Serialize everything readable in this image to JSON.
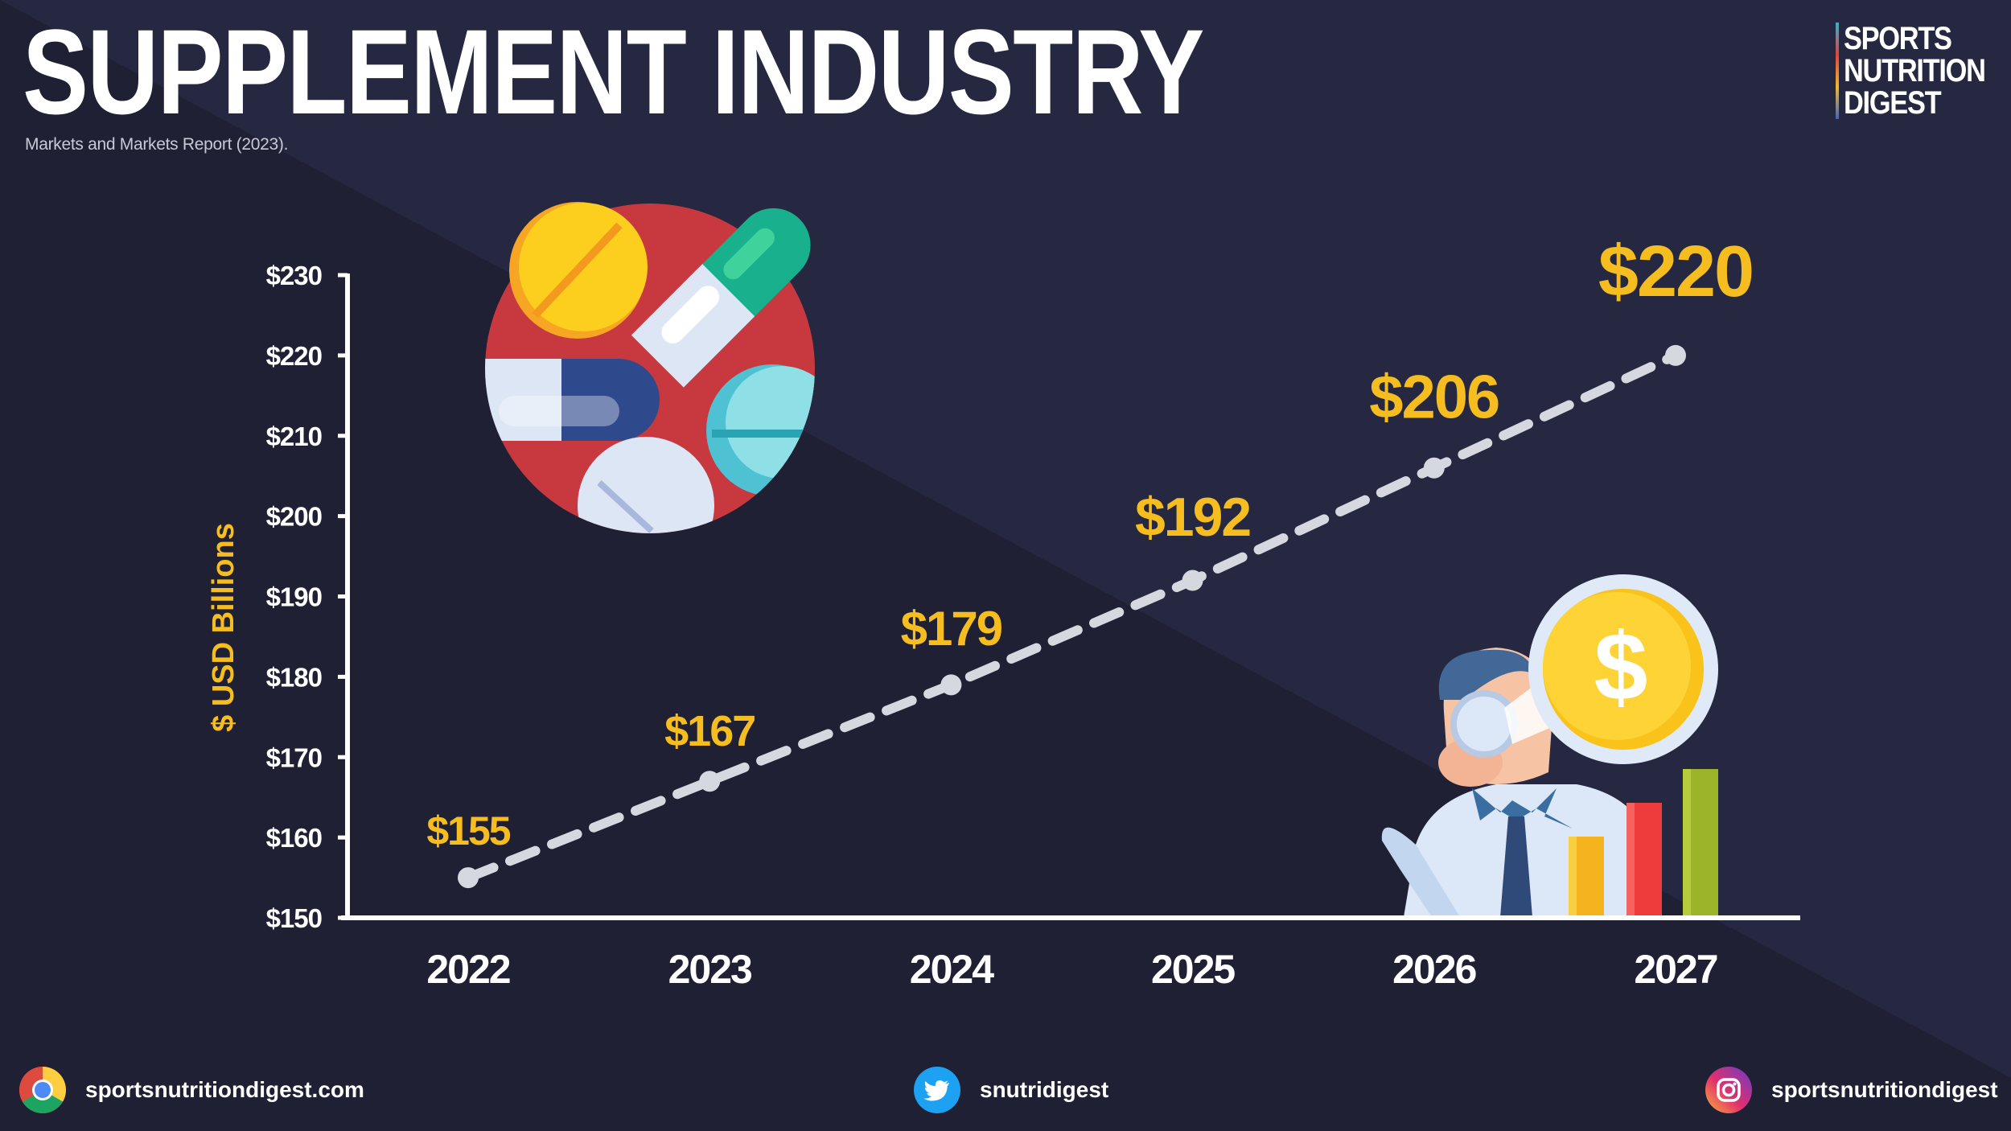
{
  "header": {
    "title": "SUPPLEMENT INDUSTRY",
    "source": "Markets and Markets Report (2023).",
    "brand_lines": [
      "SPORTS",
      "NUTRITION",
      "DIGEST"
    ]
  },
  "colors": {
    "background": "#1f2034",
    "value_label": "#f5bd1f",
    "line": "#d6d8df",
    "axis": "#ffffff"
  },
  "chart_data": {
    "type": "line",
    "title": "",
    "xlabel": "",
    "ylabel": "$ USD Billions",
    "x": [
      "2022",
      "2023",
      "2024",
      "2025",
      "2026",
      "2027"
    ],
    "series": [
      {
        "values": [
          155,
          167,
          179,
          192,
          206,
          220
        ],
        "labels": [
          "$155",
          "$167",
          "$179",
          "$192",
          "$206",
          "$220"
        ]
      }
    ],
    "ylim": [
      150,
      230
    ],
    "yticks": [
      150,
      160,
      170,
      180,
      190,
      200,
      210,
      220,
      230
    ],
    "ytick_labels": [
      "$150",
      "$160",
      "$170",
      "$180",
      "$190",
      "$200",
      "$210",
      "$220",
      "$230"
    ],
    "line_style": "dashed",
    "grid": false,
    "legend": "none"
  },
  "illustrations": [
    "supplement-pills-icon",
    "investor-spyglass-dollar-icon"
  ],
  "footer": {
    "website": "sportsnutritiondigest.com",
    "twitter": "snutridigest",
    "instagram": "sportsnutritiondigest",
    "icons": [
      "chrome-icon",
      "twitter-icon",
      "instagram-icon"
    ]
  }
}
